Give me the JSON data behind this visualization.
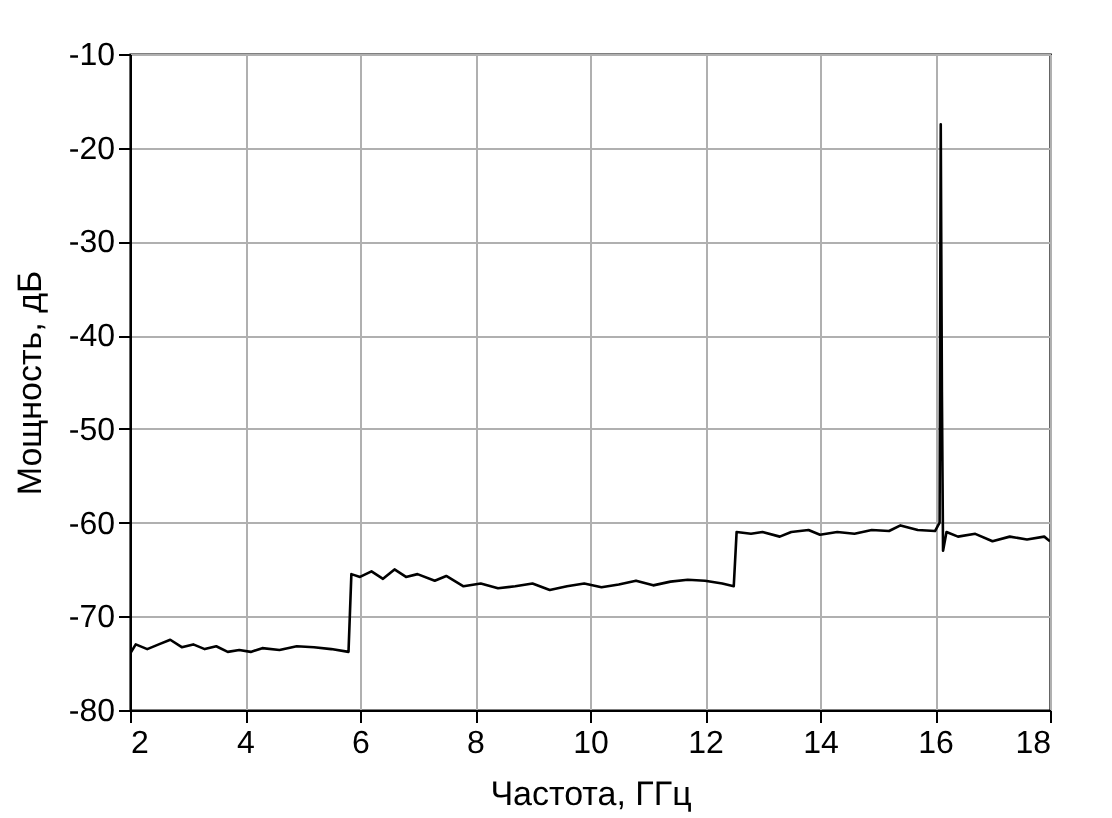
{
  "chart_data": {
    "type": "line",
    "xlabel": "Частота, ГГц",
    "ylabel": "Мощность, дБ",
    "xlim": [
      2,
      18
    ],
    "xticks": [
      2,
      4,
      6,
      8,
      10,
      12,
      14,
      16,
      18
    ],
    "ylim": [
      -80,
      -10
    ],
    "yticks": [
      -80,
      -70,
      -60,
      -50,
      -40,
      -30,
      -20,
      -10
    ],
    "grid": true,
    "legend": false,
    "marker": "none",
    "line_style": "solid",
    "series": [
      {
        "color": "#000000",
        "x": [
          2.0,
          2.1,
          2.3,
          2.5,
          2.7,
          2.9,
          3.1,
          3.3,
          3.5,
          3.7,
          3.9,
          4.1,
          4.3,
          4.6,
          4.9,
          5.2,
          5.5,
          5.8,
          5.85,
          6.0,
          6.2,
          6.4,
          6.6,
          6.8,
          7.0,
          7.3,
          7.5,
          7.8,
          8.1,
          8.4,
          8.7,
          9.0,
          9.3,
          9.6,
          9.9,
          10.2,
          10.5,
          10.8,
          11.1,
          11.4,
          11.7,
          12.0,
          12.3,
          12.5,
          12.55,
          12.8,
          13.0,
          13.3,
          13.5,
          13.8,
          14.0,
          14.3,
          14.6,
          14.9,
          15.2,
          15.4,
          15.7,
          16.0,
          16.08,
          16.1,
          16.12,
          16.14,
          16.2,
          16.4,
          16.7,
          17.0,
          17.3,
          17.6,
          17.9,
          18.0
        ],
        "values": [
          -74,
          -73,
          -73.5,
          -73,
          -72.5,
          -73.3,
          -73,
          -73.5,
          -73.2,
          -73.8,
          -73.6,
          -73.8,
          -73.4,
          -73.6,
          -73.2,
          -73.3,
          -73.5,
          -73.8,
          -65.5,
          -65.8,
          -65.2,
          -66,
          -65,
          -65.8,
          -65.5,
          -66.2,
          -65.7,
          -66.8,
          -66.5,
          -67,
          -66.8,
          -66.5,
          -67.2,
          -66.8,
          -66.5,
          -66.9,
          -66.6,
          -66.2,
          -66.7,
          -66.3,
          -66.1,
          -66.2,
          -66.5,
          -66.8,
          -61,
          -61.2,
          -61,
          -61.5,
          -61,
          -60.8,
          -61.3,
          -61,
          -61.2,
          -60.8,
          -60.9,
          -60.3,
          -60.8,
          -60.9,
          -60,
          -17.5,
          -46,
          -63,
          -61,
          -61.5,
          -61.2,
          -62,
          -61.5,
          -61.8,
          -61.5,
          -62
        ]
      }
    ]
  }
}
